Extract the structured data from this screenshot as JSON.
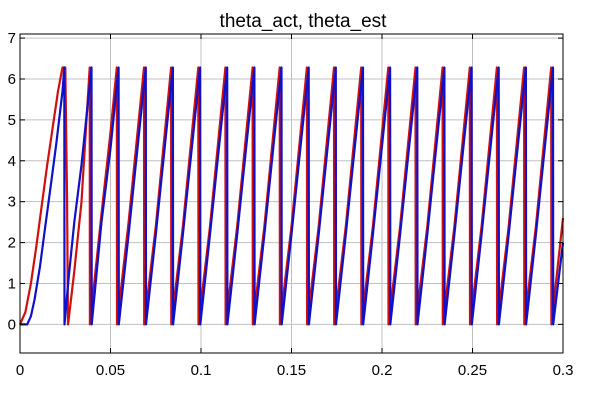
{
  "chart_data": {
    "type": "line",
    "title": "theta_act, theta_est",
    "xlabel": "",
    "ylabel": "",
    "xlim": [
      0,
      0.3
    ],
    "ylim": [
      -0.7,
      7.1
    ],
    "grid": true,
    "x_ticks": [
      0,
      0.05,
      0.1,
      0.15,
      0.2,
      0.25,
      0.3
    ],
    "x_tick_labels": [
      "0",
      "0.05",
      "0.1",
      "0.15",
      "0.2",
      "0.25",
      "0.3"
    ],
    "y_ticks": [
      0,
      1,
      2,
      3,
      4,
      5,
      6,
      7
    ],
    "y_tick_labels": [
      "0",
      "1",
      "2",
      "3",
      "4",
      "5",
      "6",
      "7"
    ],
    "colors": {
      "background": "#ffffff",
      "axes": "#000000",
      "grid": "#c0c0c0"
    },
    "series": [
      {
        "color": "#d01010",
        "x": [
          0,
          0.003,
          0.006,
          0.009,
          0.012,
          0.015,
          0.018,
          0.021,
          0.0235,
          0.0236,
          0.025,
          0.026,
          0.0265,
          0.0266,
          0.03,
          0.034,
          0.0385,
          0.0386,
          0.045,
          0.05,
          0.0535,
          0.0536,
          0.06,
          0.0685,
          0.0686,
          0.075,
          0.0835,
          0.0836,
          0.09,
          0.0985,
          0.0986,
          0.105,
          0.1135,
          0.1136,
          0.12,
          0.1285,
          0.1286,
          0.135,
          0.1435,
          0.1436,
          0.15,
          0.1585,
          0.1586,
          0.165,
          0.1735,
          0.1736,
          0.18,
          0.1885,
          0.1886,
          0.195,
          0.2035,
          0.2036,
          0.21,
          0.2185,
          0.2186,
          0.225,
          0.2335,
          0.2336,
          0.24,
          0.2485,
          0.2486,
          0.255,
          0.2635,
          0.2636,
          0.27,
          0.2785,
          0.2786,
          0.285,
          0.2935,
          0.2936,
          0.3
        ],
        "y": [
          0,
          0.3,
          1.0,
          1.9,
          2.9,
          3.9,
          4.8,
          5.7,
          6.28,
          6.28,
          6.28,
          3.0,
          0,
          0,
          1.3,
          3.0,
          6.28,
          0,
          2.7,
          4.7,
          6.28,
          0,
          2.5,
          6.28,
          0,
          2.4,
          6.28,
          0,
          2.4,
          6.28,
          0,
          2.4,
          6.28,
          0,
          2.4,
          6.28,
          0,
          2.4,
          6.28,
          0,
          2.4,
          6.28,
          0,
          2.4,
          6.28,
          0,
          2.4,
          6.28,
          0,
          2.4,
          6.28,
          0,
          2.4,
          6.28,
          0,
          2.4,
          6.28,
          0,
          2.4,
          6.28,
          0,
          2.4,
          6.28,
          0,
          2.4,
          6.28,
          0,
          2.4,
          6.28,
          0,
          2.6
        ]
      },
      {
        "color": "#1010c8",
        "x": [
          0,
          0.004,
          0.006,
          0.008,
          0.011,
          0.014,
          0.017,
          0.02,
          0.0235,
          0.0245,
          0.0246,
          0.027,
          0.03,
          0.034,
          0.0395,
          0.0396,
          0.045,
          0.05,
          0.0545,
          0.0546,
          0.06,
          0.0695,
          0.0696,
          0.075,
          0.0845,
          0.0846,
          0.09,
          0.0995,
          0.0996,
          0.105,
          0.1145,
          0.1146,
          0.12,
          0.1295,
          0.1296,
          0.135,
          0.1445,
          0.1446,
          0.15,
          0.1595,
          0.1596,
          0.165,
          0.1745,
          0.1746,
          0.18,
          0.1895,
          0.1896,
          0.195,
          0.2045,
          0.2046,
          0.21,
          0.2195,
          0.2196,
          0.225,
          0.2345,
          0.2346,
          0.24,
          0.2495,
          0.2496,
          0.255,
          0.2645,
          0.2646,
          0.27,
          0.2795,
          0.2796,
          0.285,
          0.2945,
          0.2946,
          0.3
        ],
        "y": [
          0,
          0,
          0.2,
          0.6,
          1.4,
          2.4,
          3.4,
          4.4,
          5.7,
          6.28,
          0,
          1.2,
          2.5,
          3.9,
          6.28,
          0,
          2.5,
          4.3,
          6.28,
          0,
          2.2,
          6.28,
          0,
          2.2,
          6.28,
          0,
          2.2,
          6.28,
          0,
          2.2,
          6.28,
          0,
          2.2,
          6.28,
          0,
          2.2,
          6.28,
          0,
          2.2,
          6.28,
          0,
          2.2,
          6.28,
          0,
          2.2,
          6.28,
          0,
          2.2,
          6.28,
          0,
          2.2,
          6.28,
          0,
          2.2,
          6.28,
          0,
          2.2,
          6.28,
          0,
          2.2,
          6.28,
          0,
          2.2,
          6.28,
          0,
          2.2,
          6.28,
          0,
          2.0
        ]
      }
    ]
  }
}
